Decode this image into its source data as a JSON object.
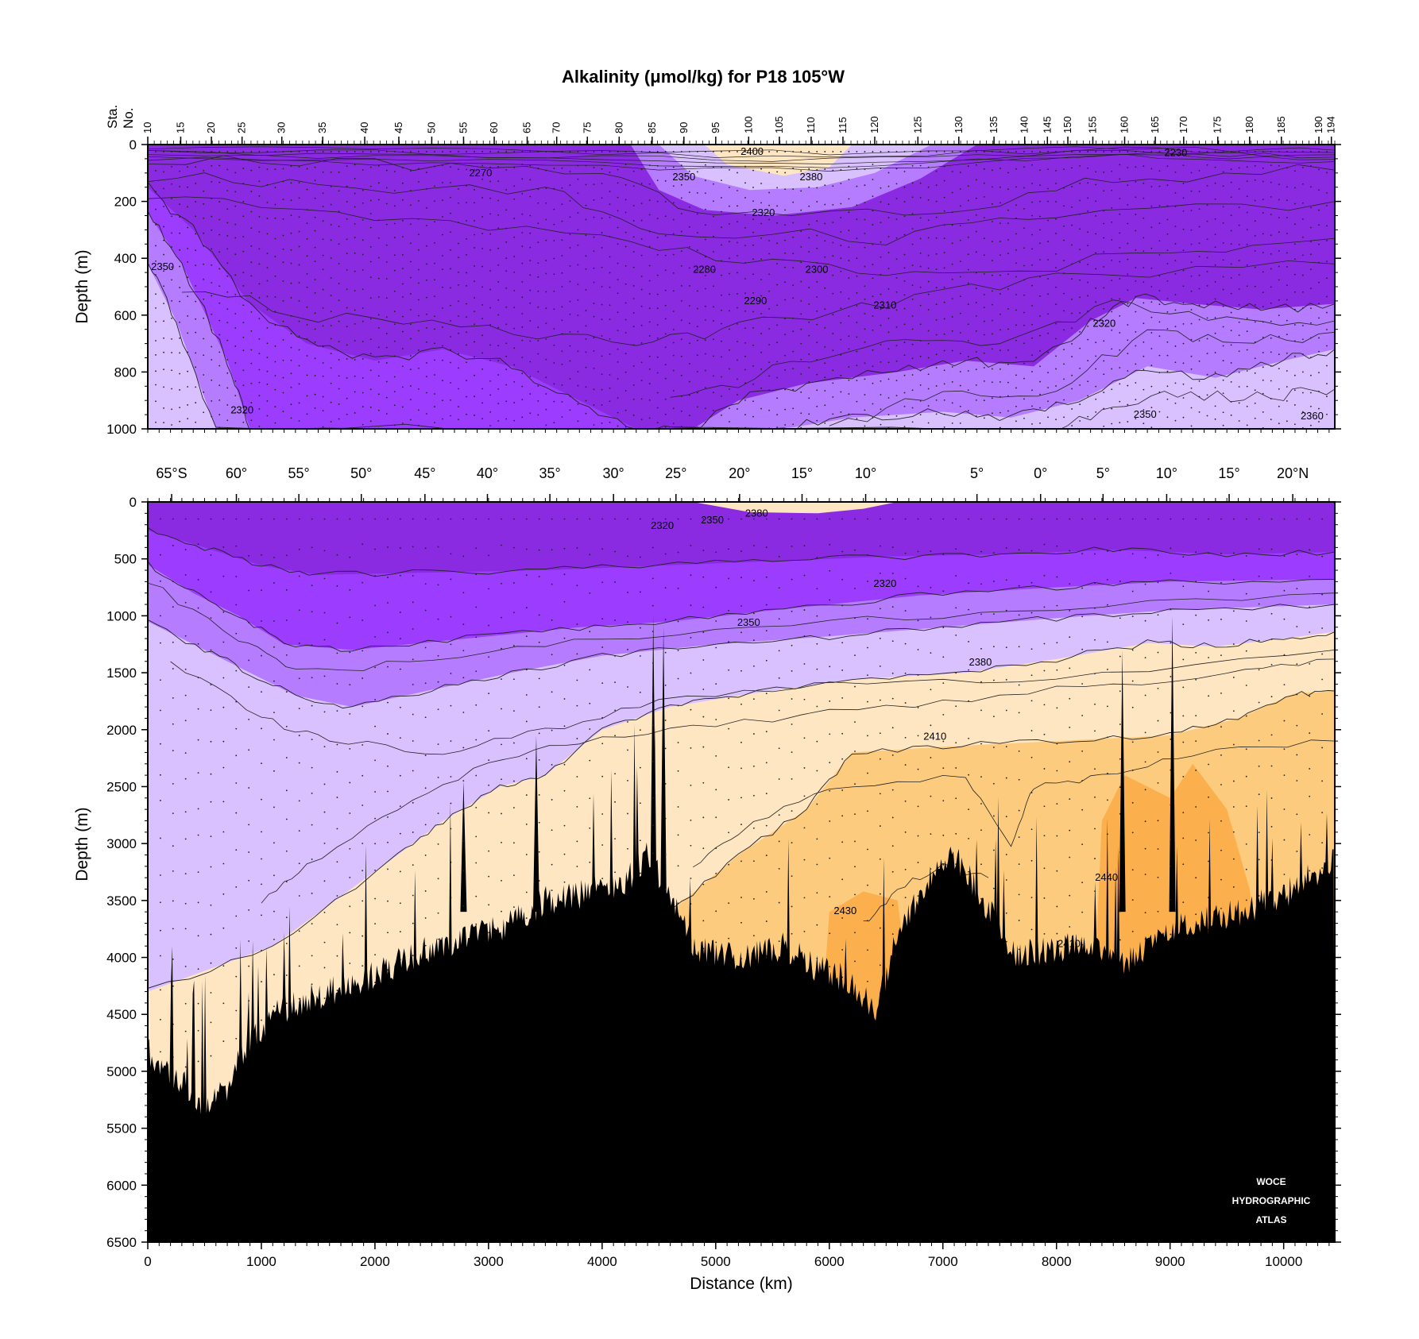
{
  "chart_data": {
    "type": "heatmap",
    "title": "Alkalinity (μmol/kg) for P18 105°W",
    "units": "μmol/kg",
    "xlabel": "Distance (km)",
    "ylabel": "Depth (m)",
    "station_axis_label": [
      "Sta.",
      "No."
    ],
    "xlim": [
      0,
      10450
    ],
    "panels": [
      {
        "name": "upper",
        "ylim": [
          1000,
          0
        ],
        "yticks": [
          0,
          200,
          400,
          600,
          800,
          1000
        ]
      },
      {
        "name": "lower",
        "ylim": [
          6500,
          0
        ],
        "yticks": [
          0,
          500,
          1000,
          1500,
          2000,
          2500,
          3000,
          3500,
          4000,
          4500,
          5000,
          5500,
          6000,
          6500
        ]
      }
    ],
    "xticks": [
      0,
      1000,
      2000,
      3000,
      4000,
      5000,
      6000,
      7000,
      8000,
      9000,
      10000
    ],
    "stations": [
      {
        "label": "10",
        "x": 0
      },
      {
        "label": "15",
        "x": 290
      },
      {
        "label": "20",
        "x": 560
      },
      {
        "label": "25",
        "x": 830
      },
      {
        "label": "30",
        "x": 1180
      },
      {
        "label": "35",
        "x": 1540
      },
      {
        "label": "40",
        "x": 1910
      },
      {
        "label": "45",
        "x": 2210
      },
      {
        "label": "50",
        "x": 2500
      },
      {
        "label": "55",
        "x": 2780
      },
      {
        "label": "60",
        "x": 3050
      },
      {
        "label": "65",
        "x": 3340
      },
      {
        "label": "70",
        "x": 3600
      },
      {
        "label": "75",
        "x": 3870
      },
      {
        "label": "80",
        "x": 4150
      },
      {
        "label": "85",
        "x": 4440
      },
      {
        "label": "90",
        "x": 4720
      },
      {
        "label": "95",
        "x": 5000
      },
      {
        "label": "100",
        "x": 5290
      },
      {
        "label": "105",
        "x": 5560
      },
      {
        "label": "110",
        "x": 5840
      },
      {
        "label": "115",
        "x": 6120
      },
      {
        "label": "120",
        "x": 6400
      },
      {
        "label": "125",
        "x": 6780
      },
      {
        "label": "130",
        "x": 7140
      },
      {
        "label": "135",
        "x": 7450
      },
      {
        "label": "140",
        "x": 7720
      },
      {
        "label": "145",
        "x": 7920
      },
      {
        "label": "150",
        "x": 8100
      },
      {
        "label": "155",
        "x": 8320
      },
      {
        "label": "160",
        "x": 8600
      },
      {
        "label": "165",
        "x": 8870
      },
      {
        "label": "170",
        "x": 9120
      },
      {
        "label": "175",
        "x": 9420
      },
      {
        "label": "180",
        "x": 9700
      },
      {
        "label": "185",
        "x": 9980
      },
      {
        "label": "190",
        "x": 10310
      },
      {
        "label": "194",
        "x": 10420
      }
    ],
    "latitudes": [
      {
        "label": "65°S",
        "x": 210
      },
      {
        "label": "60°",
        "x": 780
      },
      {
        "label": "55°",
        "x": 1330
      },
      {
        "label": "50°",
        "x": 1880
      },
      {
        "label": "45°",
        "x": 2440
      },
      {
        "label": "40°",
        "x": 2990
      },
      {
        "label": "35°",
        "x": 3540
      },
      {
        "label": "30°",
        "x": 4100
      },
      {
        "label": "25°",
        "x": 4650
      },
      {
        "label": "20°",
        "x": 5210
      },
      {
        "label": "15°",
        "x": 5760
      },
      {
        "label": "10°",
        "x": 6320
      },
      {
        "label": "5°",
        "x": 7300
      },
      {
        "label": "0°",
        "x": 7860
      },
      {
        "label": "5°",
        "x": 8410
      },
      {
        "label": "10°",
        "x": 8970
      },
      {
        "label": "15°",
        "x": 9520
      },
      {
        "label": "20°N",
        "x": 10080
      }
    ],
    "color_scale": [
      {
        "min": 0,
        "max": 2290,
        "color": "#8a2be2"
      },
      {
        "min": 2290,
        "max": 2320,
        "color": "#9b3cff"
      },
      {
        "min": 2320,
        "max": 2350,
        "color": "#b57cff"
      },
      {
        "min": 2350,
        "max": 2380,
        "color": "#d9c1ff"
      },
      {
        "min": 2380,
        "max": 2410,
        "color": "#ffe6c2"
      },
      {
        "min": 2410,
        "max": 2430,
        "color": "#fccb7d"
      },
      {
        "min": 2430,
        "max": 9999,
        "color": "#fbb04d"
      }
    ],
    "contour_labels_upper": [
      {
        "text": "2400",
        "x": 5320,
        "y": 25
      },
      {
        "text": "2230",
        "x": 9050,
        "y": 30
      },
      {
        "text": "2270",
        "x": 2930,
        "y": 100
      },
      {
        "text": "2350",
        "x": 4720,
        "y": 115
      },
      {
        "text": "2380",
        "x": 5840,
        "y": 115
      },
      {
        "text": "2320",
        "x": 5420,
        "y": 240
      },
      {
        "text": "2350",
        "x": 130,
        "y": 430
      },
      {
        "text": "2280",
        "x": 4900,
        "y": 440
      },
      {
        "text": "2300",
        "x": 5890,
        "y": 440
      },
      {
        "text": "2290",
        "x": 5350,
        "y": 550
      },
      {
        "text": "2310",
        "x": 6490,
        "y": 565
      },
      {
        "text": "2320",
        "x": 8420,
        "y": 630
      },
      {
        "text": "2320",
        "x": 830,
        "y": 935
      },
      {
        "text": "2350",
        "x": 8780,
        "y": 950
      },
      {
        "text": "2360",
        "x": 10250,
        "y": 955
      }
    ],
    "contour_labels_lower": [
      {
        "text": "2320",
        "x": 4530,
        "y": 210
      },
      {
        "text": "2350",
        "x": 4970,
        "y": 160
      },
      {
        "text": "2380",
        "x": 5360,
        "y": 100
      },
      {
        "text": "2320",
        "x": 6490,
        "y": 720
      },
      {
        "text": "2350",
        "x": 5290,
        "y": 1060
      },
      {
        "text": "2380",
        "x": 7330,
        "y": 1410
      },
      {
        "text": "2410",
        "x": 6930,
        "y": 2060
      },
      {
        "text": "2440",
        "x": 8440,
        "y": 3300
      },
      {
        "text": "2430",
        "x": 6140,
        "y": 3590
      },
      {
        "text": "2410",
        "x": 8110,
        "y": 3880
      }
    ],
    "grid": false,
    "legend": "none"
  },
  "logo": {
    "lines": [
      "WOCE",
      "HYDROGRAPHIC",
      "ATLAS"
    ]
  }
}
